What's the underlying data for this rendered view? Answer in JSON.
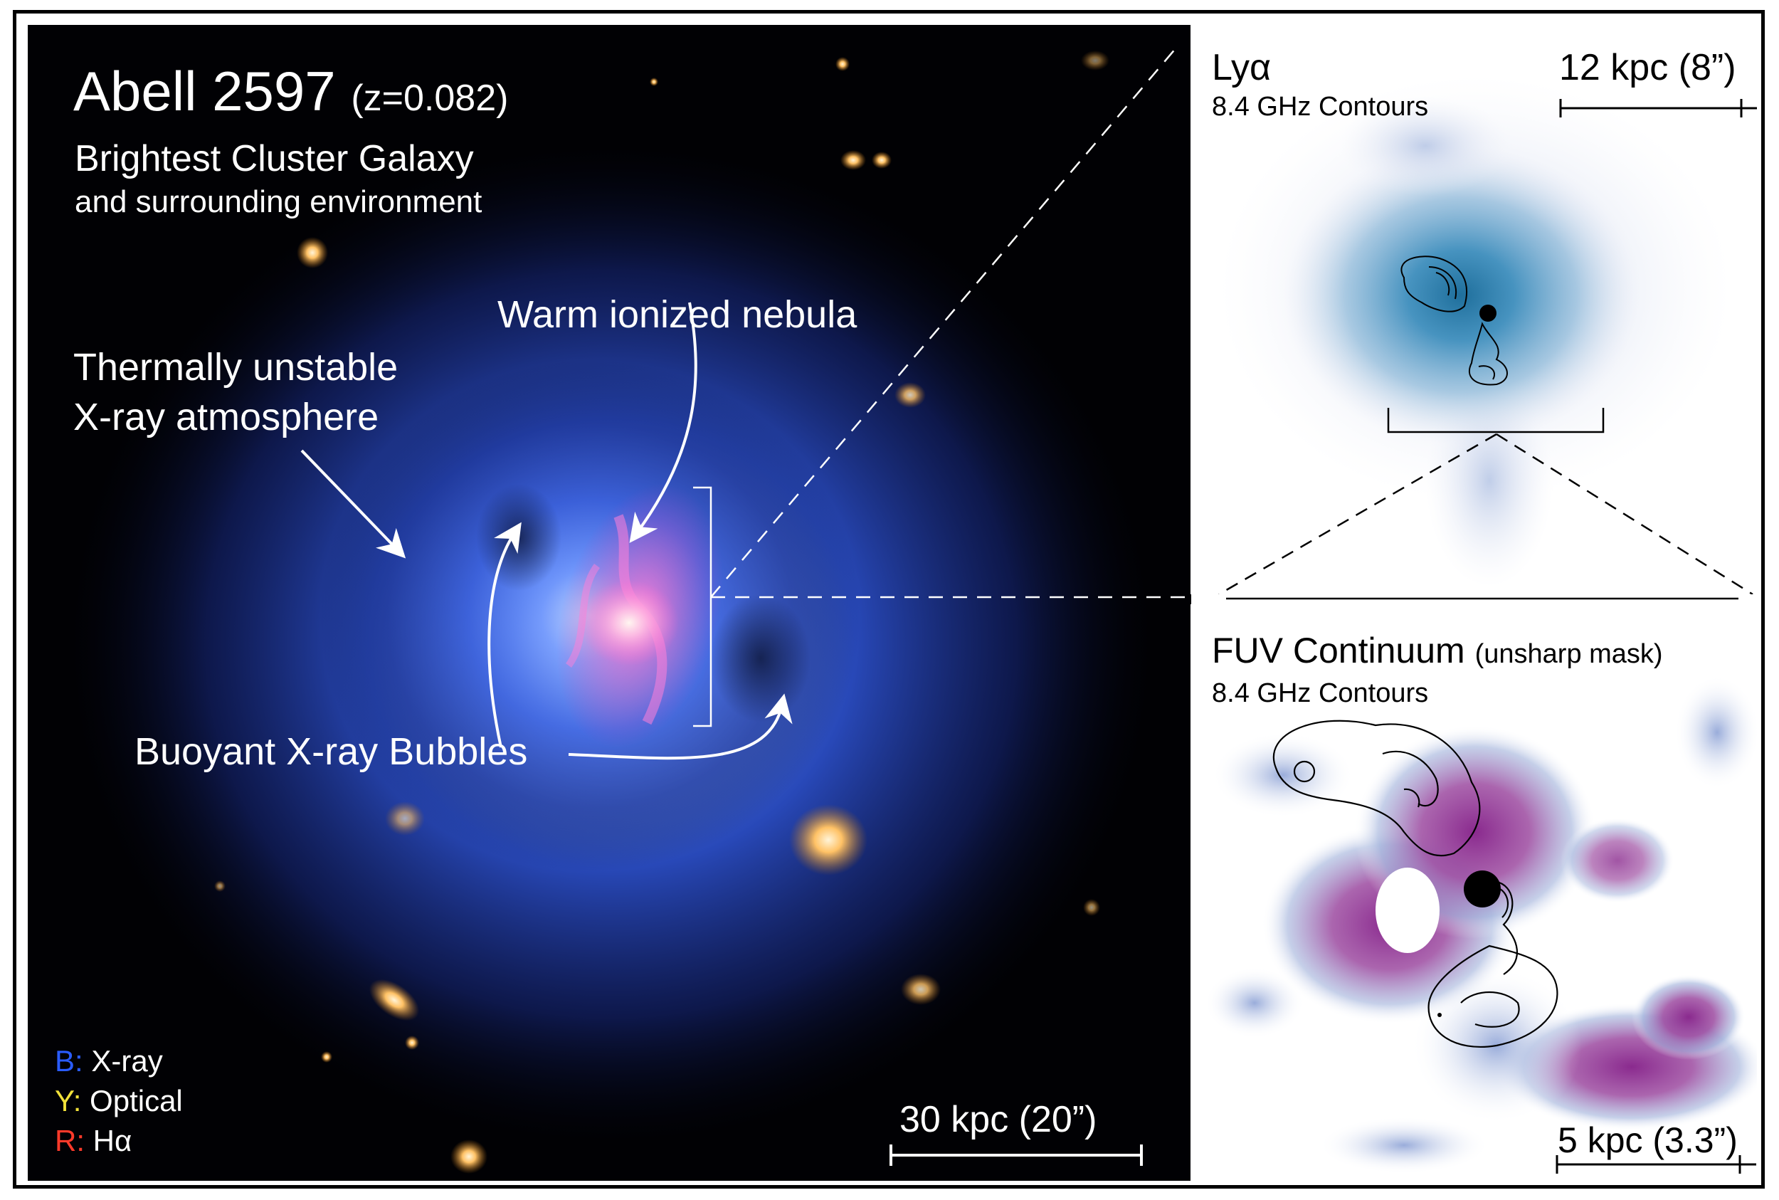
{
  "main_panel": {
    "title": "Abell 2597",
    "redshift": "(z=0.082)",
    "subtitle_line1": "Brightest Cluster Galaxy",
    "subtitle_line2": "and surrounding environment",
    "label_nebula": "Warm ionized nebula",
    "label_atmosphere_line1": "Thermally unstable",
    "label_atmosphere_line2": "X-ray atmosphere",
    "label_bubbles": "Buoyant X-ray Bubbles",
    "scale_bar": "30 kpc (20”)",
    "legend": [
      {
        "key": "B:",
        "value": "X-ray",
        "color": "#2a5cff"
      },
      {
        "key": "Y:",
        "value": "Optical",
        "color": "#f2e23a"
      },
      {
        "key": "R:",
        "value": "Hα",
        "color": "#ff3a2a"
      }
    ]
  },
  "lya_panel": {
    "title": "Lyα",
    "contours_label": "8.4 GHz Contours",
    "scale_bar": "12 kpc (8”)"
  },
  "fuv_panel": {
    "title": "FUV Continuum",
    "title_note": "(unsharp mask)",
    "contours_label": "8.4 GHz Contours",
    "scale_bar": "5 kpc (3.3”)"
  }
}
